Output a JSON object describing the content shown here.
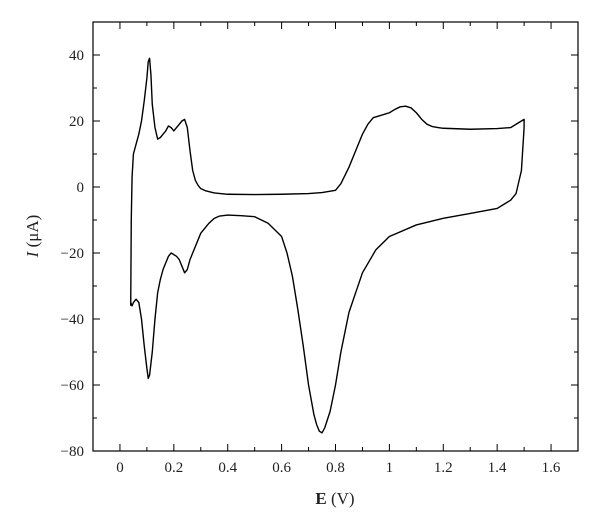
{
  "chart_data": {
    "type": "line",
    "title": "",
    "xlabel_symbol": "E",
    "xlabel_unit": " (V)",
    "ylabel_symbol": "I",
    "ylabel_unit": " (μA)",
    "xlim": [
      -0.1,
      1.7
    ],
    "ylim": [
      -80,
      50
    ],
    "grid": false,
    "xticks": [
      0,
      0.2,
      0.4,
      0.6,
      0.8,
      1,
      1.2,
      1.4,
      1.6
    ],
    "xtick_labels": [
      "0",
      "0.2",
      "0.4",
      "0.6",
      "0.8",
      "1",
      "1.2",
      "1.4",
      "1.6"
    ],
    "yticks": [
      -80,
      -60,
      -40,
      -20,
      0,
      20,
      40
    ],
    "ytick_labels": [
      "−80",
      "−60",
      "−40",
      "−20",
      "0",
      "20",
      "40"
    ],
    "line_color": "#000000",
    "series": [
      {
        "x": [
          0.04,
          0.042,
          0.045,
          0.05,
          0.06,
          0.07,
          0.08,
          0.09,
          0.1,
          0.105,
          0.11,
          0.115,
          0.12,
          0.13,
          0.14,
          0.15,
          0.16,
          0.17,
          0.18,
          0.19,
          0.2,
          0.21,
          0.22,
          0.23,
          0.24,
          0.25,
          0.26,
          0.27,
          0.28,
          0.29,
          0.3,
          0.32,
          0.35,
          0.4,
          0.5,
          0.6,
          0.7,
          0.75,
          0.8,
          0.82,
          0.85,
          0.88,
          0.9,
          0.92,
          0.94,
          0.96,
          0.98,
          1.0,
          1.02,
          1.04,
          1.06,
          1.08,
          1.1,
          1.12,
          1.14,
          1.16,
          1.18,
          1.2,
          1.3,
          1.4,
          1.45,
          1.48,
          1.5,
          1.5,
          1.49,
          1.47,
          1.45,
          1.42,
          1.4,
          1.3,
          1.2,
          1.1,
          1.0,
          0.95,
          0.9,
          0.85,
          0.82,
          0.8,
          0.78,
          0.76,
          0.75,
          0.74,
          0.73,
          0.72,
          0.7,
          0.68,
          0.66,
          0.64,
          0.62,
          0.6,
          0.55,
          0.5,
          0.45,
          0.4,
          0.37,
          0.35,
          0.33,
          0.3,
          0.28,
          0.26,
          0.25,
          0.24,
          0.23,
          0.22,
          0.21,
          0.2,
          0.19,
          0.18,
          0.17,
          0.16,
          0.15,
          0.14,
          0.13,
          0.12,
          0.11,
          0.105,
          0.1,
          0.09,
          0.08,
          0.07,
          0.06,
          0.055,
          0.05,
          0.045,
          0.04
        ],
        "y": [
          -36,
          -10,
          3,
          10,
          13,
          16,
          20,
          26,
          33,
          38,
          39,
          34,
          25,
          18,
          14.5,
          15,
          16,
          17,
          18.5,
          18,
          17,
          18,
          19,
          20,
          20.5,
          18,
          11,
          5,
          2,
          0.5,
          -0.5,
          -1.2,
          -1.8,
          -2.2,
          -2.3,
          -2.2,
          -2,
          -1.7,
          -1,
          1,
          6,
          12,
          16,
          19,
          21,
          21.5,
          22,
          22.5,
          23.5,
          24.3,
          24.5,
          24,
          22.5,
          20.5,
          19,
          18.3,
          18,
          17.8,
          17.5,
          17.7,
          18,
          19.5,
          20.5,
          18,
          5,
          -2,
          -4,
          -5.5,
          -6.5,
          -8,
          -9.5,
          -11.5,
          -15,
          -19,
          -26,
          -38,
          -50,
          -60,
          -68,
          -73,
          -74.5,
          -74,
          -72,
          -69,
          -60,
          -48,
          -37,
          -27,
          -20,
          -15,
          -11,
          -9,
          -8.7,
          -8.5,
          -8.8,
          -9.5,
          -11,
          -14,
          -18,
          -22,
          -25,
          -26,
          -24,
          -22,
          -21,
          -20.5,
          -20,
          -21,
          -23,
          -25,
          -28,
          -32,
          -40,
          -50,
          -57,
          -58,
          -55,
          -48,
          -40,
          -35,
          -34,
          -34.5,
          -35,
          -36,
          -35
        ]
      }
    ]
  }
}
